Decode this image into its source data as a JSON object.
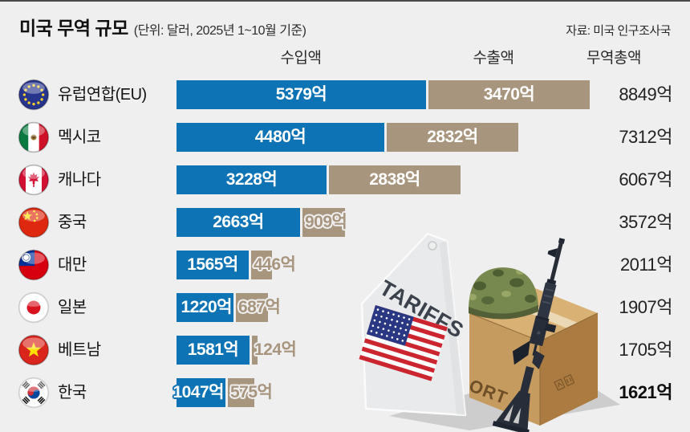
{
  "header": {
    "title": "미국 무역 규모",
    "subtitle": "(단위: 달러, 2025년 1~10월 기준)",
    "source": "자료: 미국 인구조사국"
  },
  "columns": {
    "imports": "수입액",
    "exports": "수출액",
    "total": "무역총액"
  },
  "colors": {
    "import_bar": "#0e73b5",
    "export_bar": "#a8957e",
    "background": "#efeff0",
    "total_text": "#222222"
  },
  "chart_data": {
    "type": "bar",
    "orientation": "horizontal",
    "title": "미국 무역 규모",
    "unit_note": "(단위: 달러, 2025년 1~10월 기준)",
    "source": "자료: 미국 인구조사국",
    "value_suffix": "억",
    "categories": [
      "유럽연합(EU)",
      "멕시코",
      "캐나다",
      "중국",
      "대만",
      "일본",
      "베트남",
      "한국"
    ],
    "flags": [
      "eu",
      "mx",
      "ca",
      "cn",
      "tw",
      "jp",
      "vn",
      "kr"
    ],
    "series": [
      {
        "name": "수입액",
        "values": [
          5379,
          4480,
          3228,
          2663,
          1565,
          1220,
          1581,
          1047
        ]
      },
      {
        "name": "수출액",
        "values": [
          3470,
          2832,
          2838,
          909,
          446,
          687,
          124,
          575
        ]
      },
      {
        "name": "무역총액",
        "values": [
          8849,
          7312,
          6067,
          3572,
          2011,
          1907,
          1705,
          1621
        ]
      }
    ],
    "emphasized_category": "한국",
    "legend_position": "top",
    "grid": false
  },
  "illustration": {
    "tag_label": "TARIFFS",
    "box_label": "ORT"
  }
}
